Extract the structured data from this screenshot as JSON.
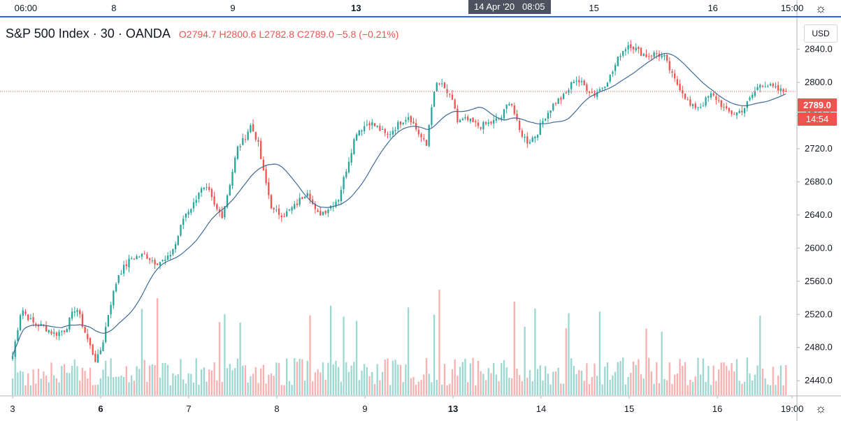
{
  "header": {
    "symbol": "S&P 500 Index",
    "interval": "30",
    "source": "OANDA",
    "o_label": "O",
    "o_value": "2794.7",
    "h_label": "H",
    "h_value": "2800.6",
    "l_label": "L",
    "l_value": "2782.8",
    "c_label": "C",
    "c_value": "2789.0",
    "change": "−5.8 (−0.21%)",
    "separator": "·"
  },
  "currency": "USD",
  "crosshair": {
    "date": "14 Apr '20",
    "time": "08:05"
  },
  "last_price": {
    "price": "2789.0",
    "countdown": "14:54"
  },
  "icons": {
    "top_settings": "settings-icon",
    "bottom_settings": "settings-icon"
  },
  "colors": {
    "up": "#26a69a",
    "down": "#ef5350",
    "ma": "#3d6b99",
    "accent": "#2962ff"
  },
  "chart_data": {
    "type": "candlestick",
    "title": "S&P 500 Index · 30 · OANDA",
    "ylabel": "USD",
    "ylim": [
      2425,
      2875
    ],
    "y_ticks": [
      2440.0,
      2480.0,
      2520.0,
      2560.0,
      2600.0,
      2640.0,
      2680.0,
      2720.0,
      2760.0,
      2800.0,
      2840.0
    ],
    "x_ticks_bottom": [
      {
        "label": "3",
        "bold": false,
        "day_pos": 0.0
      },
      {
        "label": "6",
        "bold": true,
        "day_pos": 1.0
      },
      {
        "label": "7",
        "bold": false,
        "day_pos": 2.0
      },
      {
        "label": "8",
        "bold": false,
        "day_pos": 3.0
      },
      {
        "label": "9",
        "bold": false,
        "day_pos": 4.0
      },
      {
        "label": "13",
        "bold": true,
        "day_pos": 5.0
      },
      {
        "label": "14",
        "bold": false,
        "day_pos": 6.0
      },
      {
        "label": "15",
        "bold": false,
        "day_pos": 7.0
      },
      {
        "label": "16",
        "bold": false,
        "day_pos": 8.0
      },
      {
        "label": "19:00",
        "bold": false,
        "day_pos": 8.85
      }
    ],
    "x_ticks_top": [
      {
        "label": "06:00",
        "bold": false,
        "day_pos": 0.15
      },
      {
        "label": "8",
        "bold": false,
        "day_pos": 1.15
      },
      {
        "label": "9",
        "bold": false,
        "day_pos": 2.5
      },
      {
        "label": "13",
        "bold": true,
        "day_pos": 3.9
      },
      {
        "label": "15",
        "bold": false,
        "day_pos": 6.6
      },
      {
        "label": "16",
        "bold": false,
        "day_pos": 7.95
      },
      {
        "label": "15:00",
        "bold": false,
        "day_pos": 8.85
      }
    ],
    "price_anchors": [
      [
        0,
        2470
      ],
      [
        0.1,
        2528
      ],
      [
        0.22,
        2510
      ],
      [
        0.35,
        2505
      ],
      [
        0.48,
        2496
      ],
      [
        0.6,
        2502
      ],
      [
        0.72,
        2530
      ],
      [
        0.85,
        2490
      ],
      [
        0.95,
        2462
      ],
      [
        1.02,
        2484
      ],
      [
        1.1,
        2528
      ],
      [
        1.2,
        2568
      ],
      [
        1.35,
        2588
      ],
      [
        1.5,
        2592
      ],
      [
        1.62,
        2583
      ],
      [
        1.75,
        2585
      ],
      [
        1.85,
        2605
      ],
      [
        1.95,
        2640
      ],
      [
        2.05,
        2652
      ],
      [
        2.12,
        2670
      ],
      [
        2.22,
        2670
      ],
      [
        2.3,
        2648
      ],
      [
        2.38,
        2640
      ],
      [
        2.45,
        2670
      ],
      [
        2.55,
        2720
      ],
      [
        2.62,
        2730
      ],
      [
        2.7,
        2748
      ],
      [
        2.78,
        2730
      ],
      [
        2.85,
        2690
      ],
      [
        2.95,
        2645
      ],
      [
        3.08,
        2640
      ],
      [
        3.2,
        2650
      ],
      [
        3.35,
        2670
      ],
      [
        3.45,
        2640
      ],
      [
        3.55,
        2645
      ],
      [
        3.7,
        2660
      ],
      [
        3.8,
        2700
      ],
      [
        3.9,
        2740
      ],
      [
        4.05,
        2752
      ],
      [
        4.15,
        2745
      ],
      [
        4.25,
        2735
      ],
      [
        4.4,
        2752
      ],
      [
        4.5,
        2760
      ],
      [
        4.6,
        2740
      ],
      [
        4.7,
        2723
      ],
      [
        4.75,
        2770
      ],
      [
        4.82,
        2800
      ],
      [
        4.88,
        2795
      ],
      [
        4.95,
        2785
      ],
      [
        5.02,
        2770
      ],
      [
        5.05,
        2752
      ],
      [
        5.15,
        2755
      ],
      [
        5.3,
        2747
      ],
      [
        5.45,
        2752
      ],
      [
        5.55,
        2758
      ],
      [
        5.65,
        2780
      ],
      [
        5.75,
        2742
      ],
      [
        5.85,
        2728
      ],
      [
        5.95,
        2738
      ],
      [
        6.05,
        2760
      ],
      [
        6.15,
        2775
      ],
      [
        6.28,
        2785
      ],
      [
        6.38,
        2805
      ],
      [
        6.5,
        2795
      ],
      [
        6.6,
        2785
      ],
      [
        6.7,
        2795
      ],
      [
        6.8,
        2810
      ],
      [
        6.9,
        2835
      ],
      [
        7.0,
        2847
      ],
      [
        7.1,
        2838
      ],
      [
        7.2,
        2832
      ],
      [
        7.3,
        2835
      ],
      [
        7.4,
        2830
      ],
      [
        7.5,
        2805
      ],
      [
        7.6,
        2790
      ],
      [
        7.7,
        2770
      ],
      [
        7.82,
        2772
      ],
      [
        7.92,
        2785
      ],
      [
        8.0,
        2780
      ],
      [
        8.1,
        2765
      ],
      [
        8.2,
        2762
      ],
      [
        8.3,
        2768
      ],
      [
        8.4,
        2785
      ],
      [
        8.5,
        2800
      ],
      [
        8.6,
        2795
      ],
      [
        8.7,
        2790
      ],
      [
        8.78,
        2789
      ]
    ],
    "candle_count": 300,
    "ma_period": 20,
    "volume_scale": "relative"
  }
}
